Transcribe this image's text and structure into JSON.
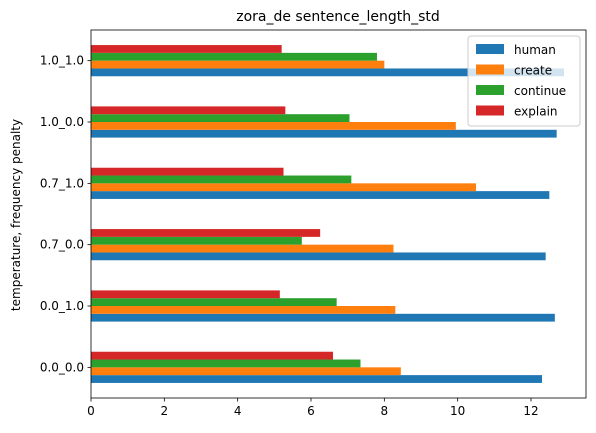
{
  "chart_data": {
    "type": "bar",
    "orientation": "horizontal",
    "title": "zora_de sentence_length_std",
    "xlabel": "",
    "ylabel": "temperature, frequency penalty",
    "categories": [
      "0.0_0.0",
      "0.0_1.0",
      "0.7_0.0",
      "0.7_1.0",
      "1.0_0.0",
      "1.0_1.0"
    ],
    "xlim": [
      0,
      13.5
    ],
    "xticks": [
      0,
      2,
      4,
      6,
      8,
      10,
      12
    ],
    "grid": false,
    "legend_position": "top-right",
    "series": [
      {
        "name": "human",
        "color": "#1f77b4",
        "values": [
          12.3,
          12.65,
          12.4,
          12.5,
          12.7,
          12.9
        ]
      },
      {
        "name": "create",
        "color": "#ff7f0e",
        "values": [
          8.45,
          8.3,
          8.25,
          10.5,
          9.95,
          8.0
        ]
      },
      {
        "name": "continue",
        "color": "#2ca02c",
        "values": [
          7.35,
          6.7,
          5.75,
          7.1,
          7.05,
          7.8
        ]
      },
      {
        "name": "explain",
        "color": "#d62728",
        "values": [
          6.6,
          5.15,
          6.25,
          5.25,
          5.3,
          5.2
        ]
      }
    ]
  }
}
